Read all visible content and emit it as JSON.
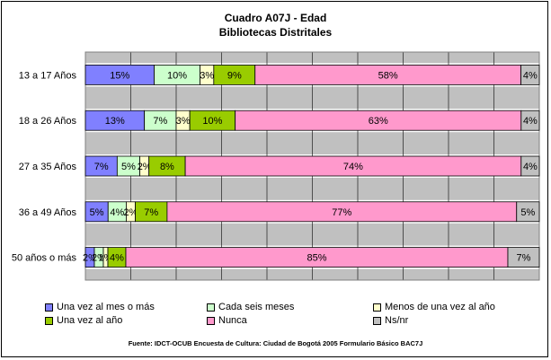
{
  "chart_data": {
    "type": "bar",
    "orientation": "horizontal",
    "stacked": "percent",
    "title": "Cuadro A07J - Edad",
    "subtitle": "Bibliotecas Distritales",
    "categories": [
      "13 a 17 Años",
      "18 a 26 Años",
      "27 a 35 Años",
      "36 a 49 Años",
      "50 años o más"
    ],
    "series": [
      {
        "name": "Una vez al mes o más",
        "color": "#8080ff",
        "values": [
          15,
          13,
          7,
          5,
          2
        ]
      },
      {
        "name": "Cada seis meses",
        "color": "#ccffcc",
        "values": [
          10,
          7,
          5,
          4,
          2
        ]
      },
      {
        "name": "Menos de una vez al año",
        "color": "#ffffcc",
        "values": [
          3,
          3,
          2,
          2,
          1
        ]
      },
      {
        "name": "Una vez al año",
        "color": "#99cc00",
        "values": [
          9,
          10,
          8,
          7,
          4
        ]
      },
      {
        "name": "Nunca",
        "color": "#ff99cc",
        "values": [
          58,
          63,
          74,
          77,
          85
        ]
      },
      {
        "name": "Ns/nr",
        "color": "#c0c0c0",
        "values": [
          4,
          4,
          4,
          5,
          7
        ]
      }
    ],
    "data_labels": [
      [
        "15%",
        "10%",
        "3%",
        "9%",
        "58%",
        "4%"
      ],
      [
        "13%",
        "7%",
        "3%",
        "10%",
        "63%",
        "4%"
      ],
      [
        "7%",
        "5%",
        "2%",
        "8%",
        "74%",
        "4%"
      ],
      [
        "5%",
        "4%",
        "2%",
        "7%",
        "77%",
        "5%"
      ],
      [
        "2%",
        "2%",
        "1%",
        "4%",
        "85%",
        "7%"
      ]
    ],
    "xlim": [
      0,
      100
    ],
    "grid": true,
    "legend_position": "bottom",
    "plot_background": "#c0c0c0"
  },
  "source_note": "Fuente: IDCT-OCUB Encuesta de Cultura: Ciudad de Bogotá 2005 Formulario Básico BAC7J"
}
